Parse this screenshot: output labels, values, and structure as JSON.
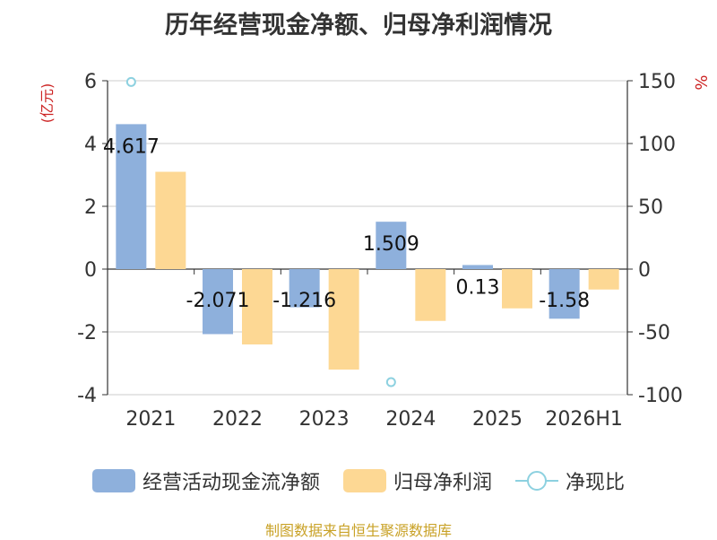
{
  "chart_data": {
    "type": "bar",
    "title": "历年经营现金净额、归母净利润情况",
    "categories": [
      "2021",
      "2022",
      "2023",
      "2024",
      "2025",
      "2026H1"
    ],
    "y_left": {
      "label": "(亿元)",
      "ylim": [
        -4,
        6
      ],
      "ticks": [
        -4,
        -2,
        0,
        2,
        4,
        6
      ]
    },
    "y_right": {
      "label": "%",
      "ylim": [
        -100,
        150
      ],
      "ticks": [
        -100,
        -50,
        0,
        50,
        100,
        150
      ]
    },
    "series": [
      {
        "name": "经营活动现金流净额",
        "type": "bar",
        "axis": "left",
        "color": "#8eb0dc",
        "values": [
          4.617,
          -2.071,
          -1.216,
          1.509,
          0.13,
          -1.58
        ],
        "labels": [
          "4.617",
          "-2.071",
          "-1.216",
          "1.509",
          "0.13",
          "-1.58"
        ]
      },
      {
        "name": "归母净利润",
        "type": "bar",
        "axis": "left",
        "color": "#fdd894",
        "values": [
          3.1,
          -2.4,
          -3.2,
          -1.65,
          -1.25,
          -0.65
        ]
      },
      {
        "name": "净现比",
        "type": "line",
        "axis": "right",
        "color": "#8dd1e0",
        "values": [
          149,
          null,
          null,
          -90,
          null,
          null
        ]
      }
    ],
    "grid": true,
    "legend_position": "bottom",
    "source": "制图数据来自恒生聚源数据库"
  }
}
